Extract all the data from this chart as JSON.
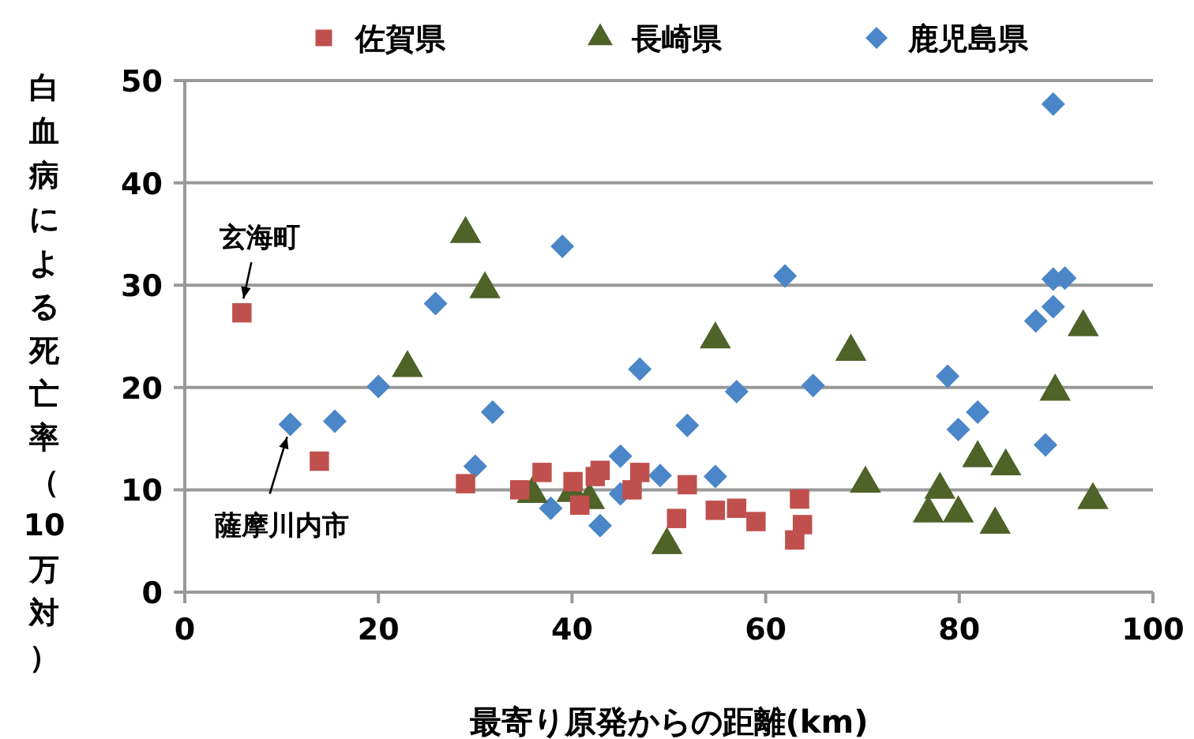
{
  "chart_data": {
    "type": "scatter",
    "xlabel": "最寄り原発からの距離(km)",
    "ylabel": "白血病による死亡率（10万対）",
    "xlim": [
      0,
      100
    ],
    "xticks": [
      0,
      20,
      40,
      60,
      80,
      100
    ],
    "ylim": [
      0,
      50
    ],
    "yticks": [
      0,
      10,
      20,
      30,
      40,
      50
    ],
    "grid": "y",
    "legend": "top",
    "series": [
      {
        "name": "佐賀県",
        "color": "#c0504d",
        "marker": "square",
        "x": [
          5.9,
          13.9,
          29,
          34.6,
          36.9,
          40.1,
          40.8,
          42.4,
          42.9,
          46.2,
          47,
          50.8,
          51.9,
          54.8,
          57,
          59,
          63.5,
          63.8,
          63
        ],
        "values": [
          27.3,
          12.8,
          10.6,
          10,
          11.7,
          10.8,
          8.5,
          11.3,
          11.9,
          10,
          11.7,
          7.2,
          10.5,
          8,
          8.2,
          6.9,
          9.1,
          6.6,
          5.1
        ]
      },
      {
        "name": "長崎県",
        "color": "#4f6228",
        "marker": "triangle",
        "x": [
          29,
          31,
          23,
          35.9,
          40,
          41.8,
          49.8,
          54.8,
          68.8,
          70.3,
          78,
          76.8,
          79.9,
          81.9,
          84.8,
          83.7,
          89.9,
          92.8,
          93.8
        ],
        "values": [
          35,
          29.6,
          21.9,
          9.6,
          9.7,
          9,
          4.6,
          24.7,
          23.5,
          10.6,
          10,
          7.7,
          7.7,
          13.1,
          12.3,
          6.6,
          19.6,
          25.9,
          9
        ]
      },
      {
        "name": "鹿児島県",
        "color": "#4a86c8",
        "marker": "diamond",
        "x": [
          10.9,
          15.5,
          20,
          25.9,
          31.8,
          30,
          39,
          37.8,
          42.9,
          45,
          45,
          47,
          49.1,
          51.9,
          54.8,
          57,
          62,
          64.9,
          78.8,
          79.9,
          81.9,
          87.9,
          89.7,
          89.7,
          90.9,
          88.9,
          89.7
        ],
        "values": [
          16.4,
          16.7,
          20.1,
          28.2,
          17.6,
          12.3,
          33.8,
          8.2,
          6.5,
          13.3,
          9.6,
          21.8,
          11.4,
          16.3,
          11.3,
          19.6,
          30.9,
          20.2,
          21.1,
          15.9,
          17.6,
          26.5,
          27.9,
          30.6,
          30.7,
          14.4,
          47.7
        ]
      }
    ],
    "annotations": [
      {
        "text": "玄海町",
        "x": 5.9,
        "y": 27.3
      },
      {
        "text": "薩摩川内市",
        "x": 10.9,
        "y": 16.4
      }
    ]
  }
}
